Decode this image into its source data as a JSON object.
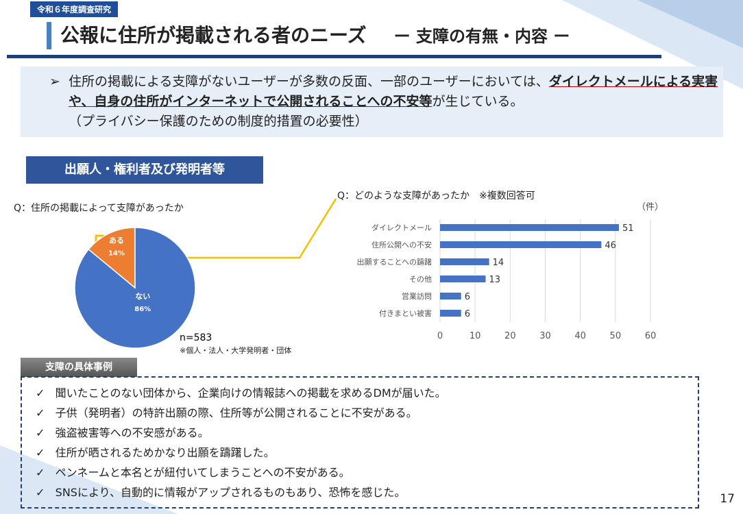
{
  "header": {
    "tag": "令和６年度調査研究",
    "title": "公報に住所が掲載される者のニーズ",
    "subtitle": "ー 支障の有無・内容 ー"
  },
  "summary": {
    "text1": "住所の掲載による支障がないユーザーが多数の反面、一部のユーザーにおいては、",
    "emphasis": "ダイレクトメールによる実害や、自身の住所がインターネットで公開されることへの不安等",
    "text2": "が生じている。",
    "note": "（プライバシー保護のための制度的措置の必要性）"
  },
  "section": "出願人・権利者及び発明者等",
  "chart_data": [
    {
      "type": "pie",
      "title": "Q：住所の掲載によって支障があったか",
      "categories": [
        "ある",
        "ない"
      ],
      "values": [
        14,
        86
      ],
      "value_labels": [
        "14%",
        "86%"
      ],
      "colors": [
        "#ed7d31",
        "#4472c4"
      ],
      "sample": "n=583",
      "note": "※個人・法人・大学発明者・団体"
    },
    {
      "type": "hbar",
      "title": "Q：どのような支障があったか　※複数回答可",
      "unit": "（件）",
      "categories": [
        "ダイレクトメール",
        "住所公開への不安",
        "出願することへの躊躇",
        "その他",
        "営業訪問",
        "付きまとい被害"
      ],
      "values": [
        51,
        46,
        14,
        13,
        6,
        6
      ],
      "color": "#4472c4",
      "xlim": [
        0,
        60
      ],
      "xticks": [
        0,
        10,
        20,
        30,
        40,
        50,
        60
      ],
      "grid": true
    }
  ],
  "examples": {
    "title": "支障の具体事例",
    "items": [
      "聞いたことのない団体から、企業向けの情報誌への掲載を求めるDMが届いた。",
      "子供（発明者）の特許出願の際、住所等が公開されることに不安がある。",
      "強盗被害等への不安感がある。",
      "住所が晒されるためかなり出願を躊躇した。",
      "ペンネームと本名とが紐付いてしまうことへの不安がある。",
      "SNSにより、自動的に情報がアップされるものもあり、恐怖を感じた。"
    ]
  },
  "page_number": "17"
}
